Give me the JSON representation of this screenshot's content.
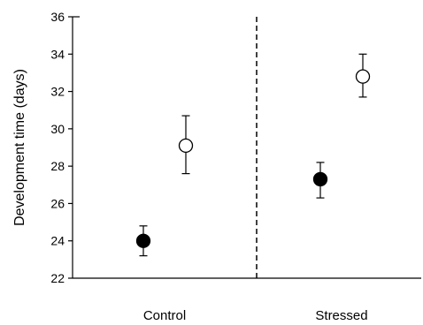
{
  "chart_data": {
    "type": "scatter",
    "title": "",
    "ylabel": "Development time (days)",
    "xlabel": "",
    "ylim": [
      22,
      36
    ],
    "yticks": [
      22,
      24,
      26,
      28,
      30,
      32,
      34,
      36
    ],
    "grid": false,
    "legend": "none",
    "categories": [
      "Control",
      "Stressed"
    ],
    "divider": "dashed vertical line between groups",
    "series": [
      {
        "marker": "filled-circle",
        "color": "#000000",
        "points": [
          {
            "group": "Control",
            "y": 24.0,
            "err_low": 23.2,
            "err_high": 24.8
          },
          {
            "group": "Stressed",
            "y": 27.3,
            "err_low": 26.3,
            "err_high": 28.2
          }
        ]
      },
      {
        "marker": "open-circle",
        "color": "#ffffff",
        "points": [
          {
            "group": "Control",
            "y": 29.1,
            "err_low": 27.6,
            "err_high": 30.7
          },
          {
            "group": "Stressed",
            "y": 32.8,
            "err_low": 31.7,
            "err_high": 34.0
          }
        ]
      }
    ]
  }
}
